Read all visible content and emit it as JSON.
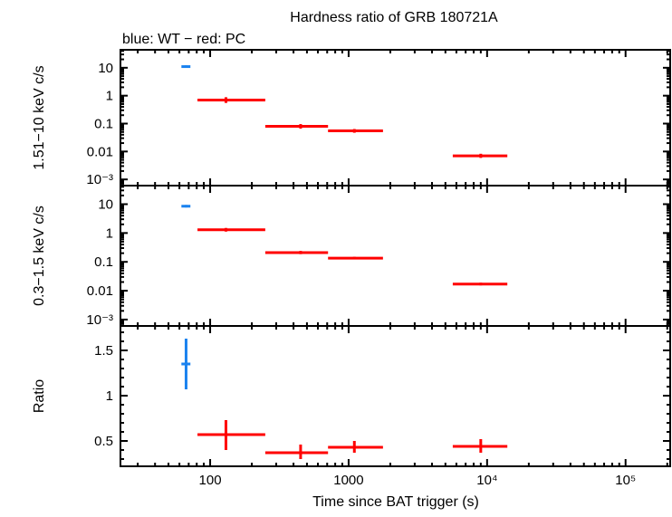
{
  "chart_data": {
    "type": "scatter",
    "title": "Hardness ratio of GRB 180721A",
    "subtitle": "blue: WT − red: PC",
    "xlabel": "Time since BAT trigger (s)",
    "xscale": "log",
    "xlim": [
      22.5,
      210000
    ],
    "xticks": [
      {
        "v": 100,
        "label": "100"
      },
      {
        "v": 1000,
        "label": "1000"
      },
      {
        "v": 10000,
        "label": "10⁴"
      },
      {
        "v": 100000,
        "label": "10⁵"
      }
    ],
    "colors": {
      "WT": "#1a82ef",
      "PC": "#ff0000"
    },
    "panels": [
      {
        "name": "hard",
        "ylabel": "1.51−10 keV c/s",
        "yscale": "log",
        "ylim": [
          0.0006,
          44
        ],
        "yticks": [
          {
            "v": 10,
            "label": "10"
          },
          {
            "v": 1,
            "label": "1"
          },
          {
            "v": 0.1,
            "label": "0.1"
          },
          {
            "v": 0.01,
            "label": "0.01"
          },
          {
            "v": 0.001,
            "label": "10⁻³"
          }
        ],
        "points": [
          {
            "mode": "WT",
            "x": 67,
            "xlo": 62,
            "xhi": 72,
            "y": 11,
            "ylo": 10,
            "yhi": 12.2
          },
          {
            "mode": "PC",
            "x": 130,
            "xlo": 81,
            "xhi": 250,
            "y": 0.7,
            "ylo": 0.55,
            "yhi": 0.88
          },
          {
            "mode": "PC",
            "x": 450,
            "xlo": 250,
            "xhi": 710,
            "y": 0.08,
            "ylo": 0.066,
            "yhi": 0.096
          },
          {
            "mode": "PC",
            "x": 1100,
            "xlo": 710,
            "xhi": 1770,
            "y": 0.055,
            "ylo": 0.047,
            "yhi": 0.064
          },
          {
            "mode": "PC",
            "x": 9000,
            "xlo": 5650,
            "xhi": 14000,
            "y": 0.007,
            "ylo": 0.0059,
            "yhi": 0.0083
          }
        ]
      },
      {
        "name": "soft",
        "ylabel": "0.3−1.5 keV c/s",
        "yscale": "log",
        "ylim": [
          0.0006,
          44
        ],
        "yticks": [
          {
            "v": 10,
            "label": "10"
          },
          {
            "v": 1,
            "label": "1"
          },
          {
            "v": 0.1,
            "label": "0.1"
          },
          {
            "v": 0.01,
            "label": "0.01"
          },
          {
            "v": 0.001,
            "label": "10⁻³"
          }
        ],
        "points": [
          {
            "mode": "WT",
            "x": 67,
            "xlo": 62,
            "xhi": 72,
            "y": 8.5,
            "ylo": 7.7,
            "yhi": 9.4
          },
          {
            "mode": "PC",
            "x": 130,
            "xlo": 81,
            "xhi": 250,
            "y": 1.3,
            "ylo": 1.12,
            "yhi": 1.5
          },
          {
            "mode": "PC",
            "x": 450,
            "xlo": 250,
            "xhi": 710,
            "y": 0.21,
            "ylo": 0.185,
            "yhi": 0.24
          },
          {
            "mode": "PC",
            "x": 1100,
            "xlo": 710,
            "xhi": 1770,
            "y": 0.135,
            "ylo": 0.122,
            "yhi": 0.15
          },
          {
            "mode": "PC",
            "x": 9000,
            "xlo": 5650,
            "xhi": 14000,
            "y": 0.017,
            "ylo": 0.0153,
            "yhi": 0.019
          }
        ]
      },
      {
        "name": "ratio",
        "ylabel": "Ratio",
        "yscale": "linear",
        "ylim": [
          0.22,
          1.77
        ],
        "yticks": [
          {
            "v": 1.5,
            "label": "1.5"
          },
          {
            "v": 1,
            "label": "1"
          },
          {
            "v": 0.5,
            "label": "0.5"
          }
        ],
        "points": [
          {
            "mode": "WT",
            "x": 67,
            "xlo": 62,
            "xhi": 72,
            "y": 1.35,
            "ylo": 1.07,
            "yhi": 1.63
          },
          {
            "mode": "PC",
            "x": 130,
            "xlo": 81,
            "xhi": 250,
            "y": 0.57,
            "ylo": 0.4,
            "yhi": 0.73
          },
          {
            "mode": "PC",
            "x": 450,
            "xlo": 250,
            "xhi": 710,
            "y": 0.37,
            "ylo": 0.3,
            "yhi": 0.46
          },
          {
            "mode": "PC",
            "x": 1100,
            "xlo": 710,
            "xhi": 1770,
            "y": 0.43,
            "ylo": 0.37,
            "yhi": 0.5
          },
          {
            "mode": "PC",
            "x": 9000,
            "xlo": 5650,
            "xhi": 14000,
            "y": 0.44,
            "ylo": 0.37,
            "yhi": 0.52
          }
        ]
      }
    ]
  }
}
